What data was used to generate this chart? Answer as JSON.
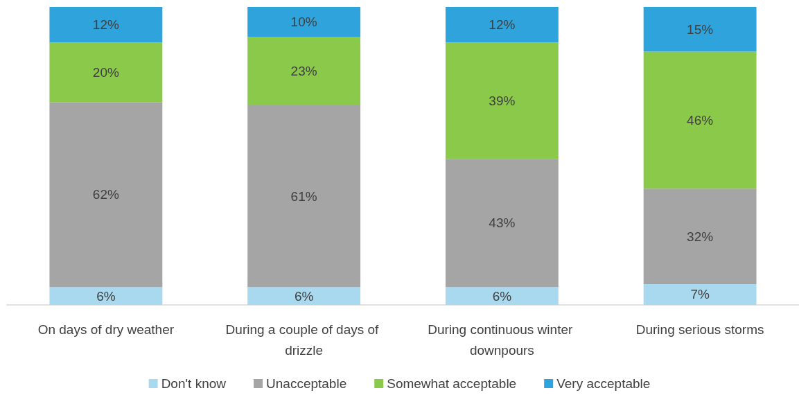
{
  "chart_data": {
    "type": "bar",
    "stacked": true,
    "categories": [
      "On days of dry weather",
      "During a couple of days of drizzle",
      "During continuous winter downpours",
      "During serious storms"
    ],
    "series": [
      {
        "name": "Don't know",
        "color": "#a9d9ef",
        "values": [
          6,
          6,
          6,
          7
        ],
        "value_labels": [
          "6%",
          "6%",
          "6%",
          "7%"
        ]
      },
      {
        "name": "Unacceptable",
        "color": "#a5a5a5",
        "values": [
          62,
          61,
          43,
          32
        ],
        "value_labels": [
          "62%",
          "61%",
          "43%",
          "32%"
        ]
      },
      {
        "name": "Somewhat acceptable",
        "color": "#8bc94a",
        "values": [
          20,
          23,
          39,
          46
        ],
        "value_labels": [
          "20%",
          "23%",
          "39%",
          "46%"
        ]
      },
      {
        "name": "Very acceptable",
        "color": "#2fa3dc",
        "values": [
          12,
          10,
          12,
          15
        ],
        "value_labels": [
          "12%",
          "10%",
          "12%",
          "15%"
        ]
      }
    ],
    "legend": "bottom"
  }
}
